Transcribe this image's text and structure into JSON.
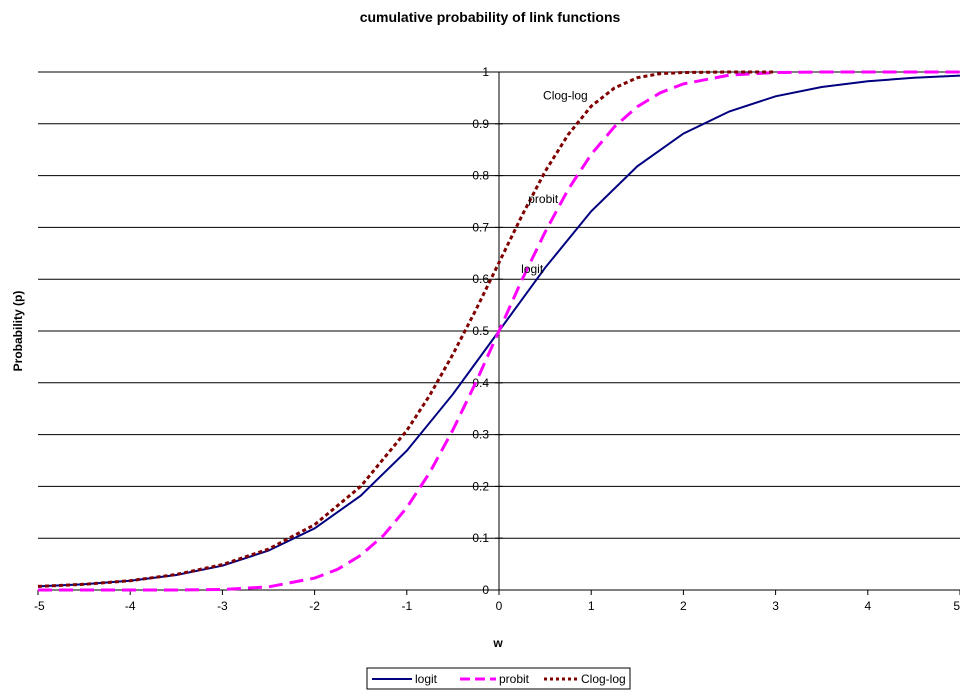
{
  "chart_data": {
    "type": "line",
    "title": "cumulative probability of link functions",
    "xlabel": "w",
    "ylabel": "Probability (p)",
    "xlim": [
      -5,
      5
    ],
    "ylim": [
      0,
      1
    ],
    "x_ticks": [
      "-5",
      "-4",
      "-3",
      "-2",
      "-1",
      "0",
      "1",
      "2",
      "3",
      "4",
      "5"
    ],
    "y_ticks": [
      "0",
      "0.1",
      "0.2",
      "0.3",
      "0.4",
      "0.5",
      "0.6",
      "0.7",
      "0.8",
      "0.9",
      "1"
    ],
    "grid": "horizontal",
    "legend_position": "bottom",
    "series": [
      {
        "name": "logit",
        "color": "#000080",
        "style": "solid",
        "x": [
          -5,
          -4.5,
          -4,
          -3.5,
          -3,
          -2.5,
          -2,
          -1.5,
          -1,
          -0.5,
          0,
          0.5,
          1,
          1.5,
          2,
          2.5,
          3,
          3.5,
          4,
          4.5,
          5
        ],
        "y": [
          0.007,
          0.011,
          0.018,
          0.029,
          0.047,
          0.076,
          0.119,
          0.182,
          0.269,
          0.378,
          0.5,
          0.622,
          0.731,
          0.818,
          0.881,
          0.924,
          0.953,
          0.971,
          0.982,
          0.989,
          0.993
        ]
      },
      {
        "name": "probit",
        "color": "#ff00ff",
        "style": "dashed",
        "x": [
          -5,
          -4.5,
          -4,
          -3.5,
          -3,
          -2.5,
          -2,
          -1.75,
          -1.5,
          -1.25,
          -1,
          -0.75,
          -0.5,
          -0.25,
          0,
          0.25,
          0.5,
          0.75,
          1,
          1.25,
          1.5,
          1.75,
          2,
          2.5,
          3,
          3.5,
          4,
          4.5,
          5
        ],
        "y": [
          0,
          0,
          0,
          0,
          0.001,
          0.006,
          0.023,
          0.04,
          0.067,
          0.106,
          0.159,
          0.227,
          0.309,
          0.401,
          0.5,
          0.599,
          0.691,
          0.773,
          0.841,
          0.894,
          0.933,
          0.96,
          0.977,
          0.994,
          0.999,
          1,
          1,
          1,
          1
        ]
      },
      {
        "name": "Clog-log",
        "color": "#800000",
        "style": "dotted",
        "x": [
          -5,
          -4.5,
          -4,
          -3.5,
          -3,
          -2.5,
          -2,
          -1.5,
          -1,
          -0.75,
          -0.5,
          -0.25,
          0,
          0.25,
          0.5,
          0.75,
          1,
          1.25,
          1.5,
          1.75,
          2,
          2.5,
          3
        ],
        "y": [
          0.007,
          0.011,
          0.018,
          0.03,
          0.049,
          0.079,
          0.126,
          0.2,
          0.308,
          0.376,
          0.455,
          0.541,
          0.632,
          0.723,
          0.808,
          0.879,
          0.934,
          0.969,
          0.989,
          0.997,
          0.999,
          1,
          1
        ]
      }
    ],
    "annotations": [
      {
        "text": "Clog-log",
        "x": 0.72,
        "y": 0.955
      },
      {
        "text": "probit",
        "x": 0.48,
        "y": 0.755
      },
      {
        "text": "logit",
        "x": 0.36,
        "y": 0.62
      }
    ]
  }
}
